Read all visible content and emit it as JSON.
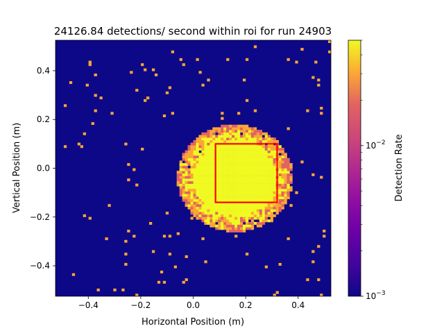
{
  "chart_data": {
    "type": "heatmap",
    "title": "24126.84 detections/ second within roi for run 24903",
    "xlabel": "Horizontal Position (m)",
    "ylabel": "Vertical Position (m)",
    "xlim": [
      -0.525,
      0.525
    ],
    "ylim": [
      -0.525,
      0.525
    ],
    "x_ticks": [
      -0.4,
      -0.2,
      0.0,
      0.2,
      0.4
    ],
    "x_tick_labels": [
      "−0.4",
      "−0.2",
      "0.0",
      "0.2",
      "0.4"
    ],
    "y_ticks": [
      -0.4,
      -0.2,
      0.0,
      0.2,
      0.4
    ],
    "y_tick_labels": [
      "−0.4",
      "−0.2",
      "0.0",
      "0.2",
      "0.4"
    ],
    "colormap": "plasma",
    "background_color": "#0d0887",
    "grid": false,
    "colorbar": {
      "label": "Detection Rate",
      "scale": "log",
      "range": [
        0.001,
        0.05
      ],
      "major_ticks": [
        0.001,
        0.01
      ],
      "major_tick_labels_base": [
        "10",
        "10"
      ],
      "major_tick_labels_exp": [
        "−3",
        "−2"
      ]
    },
    "beam_spot": {
      "center": [
        0.16,
        -0.04
      ],
      "core_radius": 0.155,
      "edge_radius": 0.22,
      "core_value_level": "saturated"
    },
    "roi": {
      "x0": 0.085,
      "x1": 0.32,
      "y0": -0.14,
      "y1": 0.1,
      "color": "#ff0000"
    }
  }
}
